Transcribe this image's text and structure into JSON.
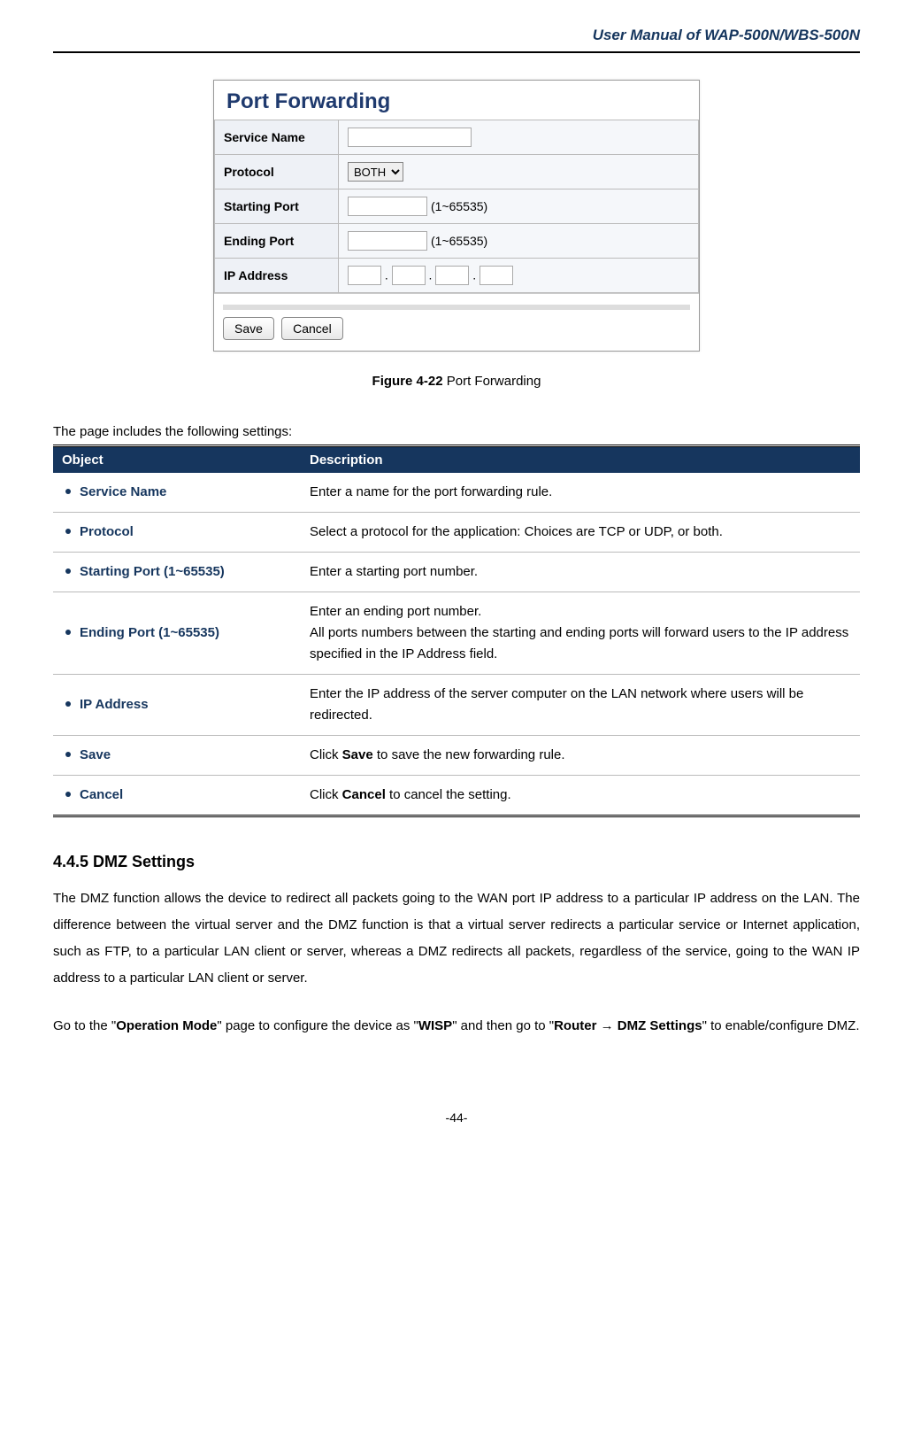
{
  "header": {
    "title": "User Manual of WAP-500N/WBS-500N"
  },
  "screenshot": {
    "panel_title": "Port Forwarding",
    "rows": {
      "service_name": {
        "label": "Service Name",
        "value": ""
      },
      "protocol": {
        "label": "Protocol",
        "selected": "BOTH"
      },
      "starting_port": {
        "label": "Starting Port",
        "value": "",
        "hint": "(1~65535)"
      },
      "ending_port": {
        "label": "Ending Port",
        "value": "",
        "hint": "(1~65535)"
      },
      "ip_address": {
        "label": "IP Address",
        "oct1": "",
        "oct2": "",
        "oct3": "",
        "oct4": ""
      }
    },
    "buttons": {
      "save": "Save",
      "cancel": "Cancel"
    }
  },
  "figure": {
    "number": "Figure 4-22",
    "caption": "Port Forwarding"
  },
  "settings_intro": "The page includes the following settings:",
  "settings_table": {
    "headers": {
      "object": "Object",
      "description": "Description"
    },
    "rows": [
      {
        "object": "Service Name",
        "description": "Enter a name for the port forwarding rule."
      },
      {
        "object": "Protocol",
        "description": "Select a protocol for the application: Choices are TCP or UDP, or both."
      },
      {
        "object": "Starting Port (1~65535)",
        "description": "Enter a starting port number."
      },
      {
        "object": "Ending Port (1~65535)",
        "description": "Enter an ending port number.\nAll ports numbers between the starting and ending ports will forward users to the IP address specified in the IP Address field."
      },
      {
        "object": "IP Address",
        "description": "Enter the IP address of the server computer on the LAN network where users will be redirected."
      },
      {
        "object": "Save",
        "description_html": "Click <b>Save</b> to save the new forwarding rule."
      },
      {
        "object": "Cancel",
        "description_html": "Click <b>Cancel</b> to cancel the setting."
      }
    ]
  },
  "section": {
    "heading": "4.4.5  DMZ Settings",
    "para1": "The DMZ function allows the device to redirect all packets going to the WAN port IP address to a particular IP address on the LAN. The difference between the virtual server and the DMZ function is that a virtual server redirects a particular service or Internet application, such as FTP, to a particular LAN client or server, whereas a DMZ redirects all packets, regardless of the service, going to the WAN IP address to a particular LAN client or server.",
    "para2_pre": "Go to the \"",
    "para2_b1": "Operation Mode",
    "para2_mid1": "\" page to configure the device as \"",
    "para2_b2": "WISP",
    "para2_mid2": "\" and then go to \"",
    "para2_b3": "Router ",
    "para2_arrow": "→",
    "para2_b4": " DMZ Settings",
    "para2_post": "\" to enable/configure DMZ."
  },
  "page_number": "-44-"
}
